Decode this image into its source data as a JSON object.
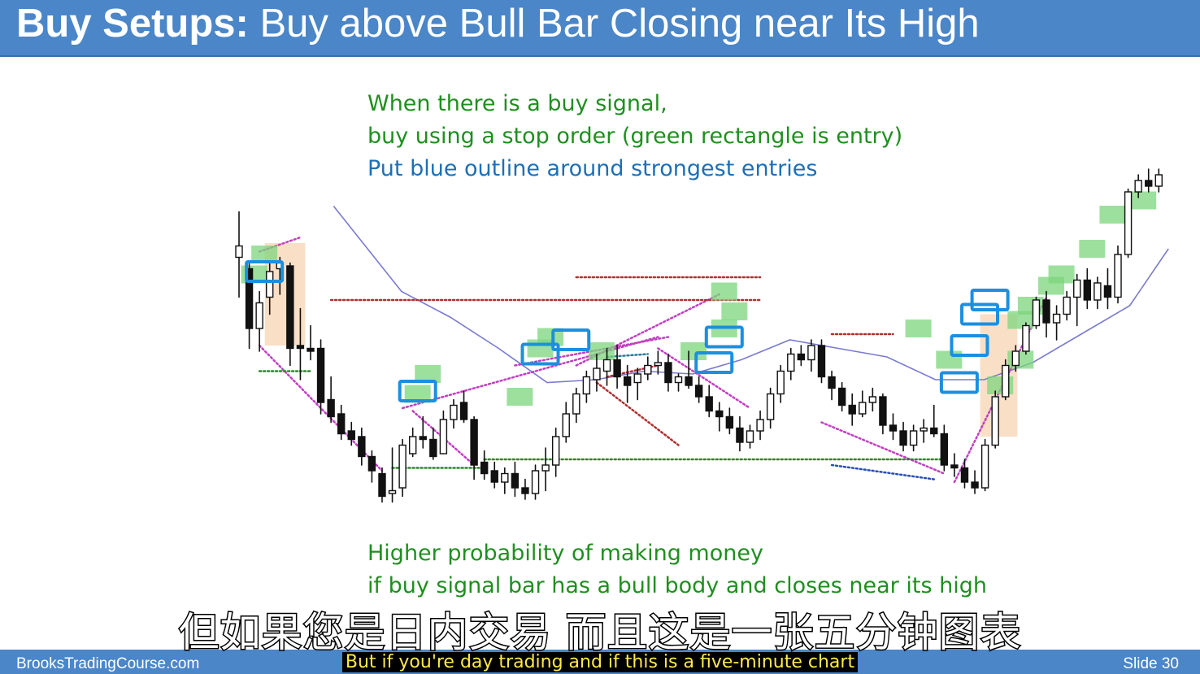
{
  "header": {
    "title_bold": "Buy Setups:",
    "title_rest": "Buy above Bull Bar Closing near Its High"
  },
  "notes": {
    "line1": "When there is a buy signal,",
    "line2": "buy using a stop order (green rectangle is entry)",
    "line3": "Put blue outline around strongest entries",
    "line4": "Higher probability of making money",
    "line5": "if buy signal bar has a bull body and closes near its high"
  },
  "footer": {
    "site": "BrooksTradingCourse.com",
    "slide": "Slide  30"
  },
  "subtitles": {
    "zh": "但如果您是日内交易 而且这是一张五分钟图表",
    "en": "But if you're day trading and if this is a five-minute chart"
  },
  "colors": {
    "bull_body": "#ffffff",
    "bear_body": "#111111",
    "entry_fill": "#7cd67c",
    "strong_outline": "#1b8fe0",
    "moving_average": "#7a7ad0",
    "trendline": "#c23fc2",
    "resistance": "#b03030",
    "support": "#2a8a2a",
    "highlight": "#f8dcc0"
  },
  "chart_data": {
    "type": "candlestick",
    "title": "",
    "xlabel": "",
    "ylabel": "",
    "ylim": [
      0,
      100
    ],
    "bars": [
      {
        "o": 71,
        "h": 87,
        "l": 57,
        "c": 75
      },
      {
        "o": 67,
        "h": 69,
        "l": 39,
        "c": 46
      },
      {
        "o": 46,
        "h": 59,
        "l": 38,
        "c": 55
      },
      {
        "o": 57,
        "h": 69,
        "l": 51,
        "c": 66
      },
      {
        "o": 67,
        "h": 71,
        "l": 58,
        "c": 69
      },
      {
        "o": 68,
        "h": 69,
        "l": 33,
        "c": 39
      },
      {
        "o": 40,
        "h": 53,
        "l": 28,
        "c": 39
      },
      {
        "o": 39,
        "h": 47,
        "l": 35,
        "c": 38
      },
      {
        "o": 39,
        "h": 42,
        "l": 16,
        "c": 20
      },
      {
        "o": 21,
        "h": 29,
        "l": 13,
        "c": 15
      },
      {
        "o": 16,
        "h": 19,
        "l": 7,
        "c": 9
      },
      {
        "o": 10,
        "h": 13,
        "l": 5,
        "c": 7
      },
      {
        "o": 8,
        "h": 11,
        "l": -2,
        "c": 1
      },
      {
        "o": 1,
        "h": 3,
        "l": -8,
        "c": -4
      },
      {
        "o": -5,
        "h": -3,
        "l": -15,
        "c": -13
      },
      {
        "o": -12,
        "h": 4,
        "l": -15,
        "c": -11
      },
      {
        "o": -10,
        "h": 7,
        "l": -13,
        "c": 5
      },
      {
        "o": 2,
        "h": 11,
        "l": 1,
        "c": 8
      },
      {
        "o": 8,
        "h": 15,
        "l": 4,
        "c": 7
      },
      {
        "o": 7,
        "h": 11,
        "l": 0,
        "c": 1
      },
      {
        "o": 2,
        "h": 17,
        "l": 2,
        "c": 14
      },
      {
        "o": 14,
        "h": 21,
        "l": 11,
        "c": 19
      },
      {
        "o": 20,
        "h": 24,
        "l": 13,
        "c": 14
      },
      {
        "o": 14,
        "h": 15,
        "l": -7,
        "c": -2
      },
      {
        "o": -1,
        "h": 3,
        "l": -7,
        "c": -5
      },
      {
        "o": -4,
        "h": -1,
        "l": -10,
        "c": -8
      },
      {
        "o": -8,
        "h": -3,
        "l": -12,
        "c": -5
      },
      {
        "o": -5,
        "h": -1,
        "l": -13,
        "c": -10
      },
      {
        "o": -10,
        "h": -7,
        "l": -14,
        "c": -12
      },
      {
        "o": -12,
        "h": -2,
        "l": -14,
        "c": -4
      },
      {
        "o": -4,
        "h": 4,
        "l": -11,
        "c": -2
      },
      {
        "o": -2,
        "h": 11,
        "l": -6,
        "c": 8
      },
      {
        "o": 8,
        "h": 20,
        "l": 6,
        "c": 16
      },
      {
        "o": 16,
        "h": 25,
        "l": 13,
        "c": 23
      },
      {
        "o": 23,
        "h": 31,
        "l": 20,
        "c": 29
      },
      {
        "o": 28,
        "h": 37,
        "l": 24,
        "c": 32
      },
      {
        "o": 31,
        "h": 39,
        "l": 26,
        "c": 35
      },
      {
        "o": 35,
        "h": 40,
        "l": 25,
        "c": 29
      },
      {
        "o": 29,
        "h": 33,
        "l": 20,
        "c": 26
      },
      {
        "o": 27,
        "h": 32,
        "l": 21,
        "c": 30
      },
      {
        "o": 30,
        "h": 36,
        "l": 28,
        "c": 33
      },
      {
        "o": 33,
        "h": 38,
        "l": 30,
        "c": 34
      },
      {
        "o": 34,
        "h": 37,
        "l": 24,
        "c": 27
      },
      {
        "o": 27,
        "h": 30,
        "l": 24,
        "c": 29
      },
      {
        "o": 29,
        "h": 38,
        "l": 25,
        "c": 26
      },
      {
        "o": 26,
        "h": 29,
        "l": 20,
        "c": 22
      },
      {
        "o": 22,
        "h": 26,
        "l": 15,
        "c": 17
      },
      {
        "o": 17,
        "h": 20,
        "l": 10,
        "c": 15
      },
      {
        "o": 15,
        "h": 18,
        "l": 9,
        "c": 11
      },
      {
        "o": 11,
        "h": 15,
        "l": 3,
        "c": 6
      },
      {
        "o": 6,
        "h": 12,
        "l": 4,
        "c": 10
      },
      {
        "o": 10,
        "h": 17,
        "l": 7,
        "c": 14
      },
      {
        "o": 14,
        "h": 25,
        "l": 11,
        "c": 23
      },
      {
        "o": 23,
        "h": 33,
        "l": 20,
        "c": 31
      },
      {
        "o": 31,
        "h": 39,
        "l": 28,
        "c": 37
      },
      {
        "o": 37,
        "h": 40,
        "l": 33,
        "c": 35
      },
      {
        "o": 35,
        "h": 42,
        "l": 31,
        "c": 40
      },
      {
        "o": 40,
        "h": 42,
        "l": 27,
        "c": 29
      },
      {
        "o": 29,
        "h": 31,
        "l": 21,
        "c": 25
      },
      {
        "o": 25,
        "h": 27,
        "l": 17,
        "c": 19
      },
      {
        "o": 19,
        "h": 23,
        "l": 12,
        "c": 16
      },
      {
        "o": 16,
        "h": 24,
        "l": 15,
        "c": 20
      },
      {
        "o": 20,
        "h": 25,
        "l": 17,
        "c": 22
      },
      {
        "o": 22,
        "h": 23,
        "l": 9,
        "c": 12
      },
      {
        "o": 12,
        "h": 16,
        "l": 7,
        "c": 10
      },
      {
        "o": 10,
        "h": 13,
        "l": 3,
        "c": 5
      },
      {
        "o": 5,
        "h": 12,
        "l": 3,
        "c": 10
      },
      {
        "o": 10,
        "h": 14,
        "l": 6,
        "c": 11
      },
      {
        "o": 11,
        "h": 19,
        "l": 8,
        "c": 9
      },
      {
        "o": 9,
        "h": 12,
        "l": -4,
        "c": -2
      },
      {
        "o": -2,
        "h": 2,
        "l": -6,
        "c": -3
      },
      {
        "o": -3,
        "h": 0,
        "l": -10,
        "c": -8
      },
      {
        "o": -8,
        "h": -4,
        "l": -12,
        "c": -10
      },
      {
        "o": -10,
        "h": 7,
        "l": -11,
        "c": 5
      },
      {
        "o": 5,
        "h": 24,
        "l": 4,
        "c": 22
      },
      {
        "o": 22,
        "h": 35,
        "l": 21,
        "c": 33
      },
      {
        "o": 33,
        "h": 40,
        "l": 31,
        "c": 38
      },
      {
        "o": 38,
        "h": 48,
        "l": 37,
        "c": 47
      },
      {
        "o": 47,
        "h": 57,
        "l": 46,
        "c": 56
      },
      {
        "o": 56,
        "h": 59,
        "l": 43,
        "c": 48
      },
      {
        "o": 48,
        "h": 54,
        "l": 42,
        "c": 51
      },
      {
        "o": 51,
        "h": 59,
        "l": 49,
        "c": 57
      },
      {
        "o": 57,
        "h": 65,
        "l": 47,
        "c": 63
      },
      {
        "o": 63,
        "h": 67,
        "l": 53,
        "c": 56
      },
      {
        "o": 56,
        "h": 64,
        "l": 53,
        "c": 62
      },
      {
        "o": 61,
        "h": 67,
        "l": 53,
        "c": 57
      },
      {
        "o": 57,
        "h": 75,
        "l": 55,
        "c": 72
      },
      {
        "o": 72,
        "h": 95,
        "l": 71,
        "c": 94
      },
      {
        "o": 94,
        "h": 100,
        "l": 92,
        "c": 98
      },
      {
        "o": 98,
        "h": 102,
        "l": 94,
        "c": 96
      },
      {
        "o": 96,
        "h": 102,
        "l": 94,
        "c": 100
      }
    ]
  }
}
